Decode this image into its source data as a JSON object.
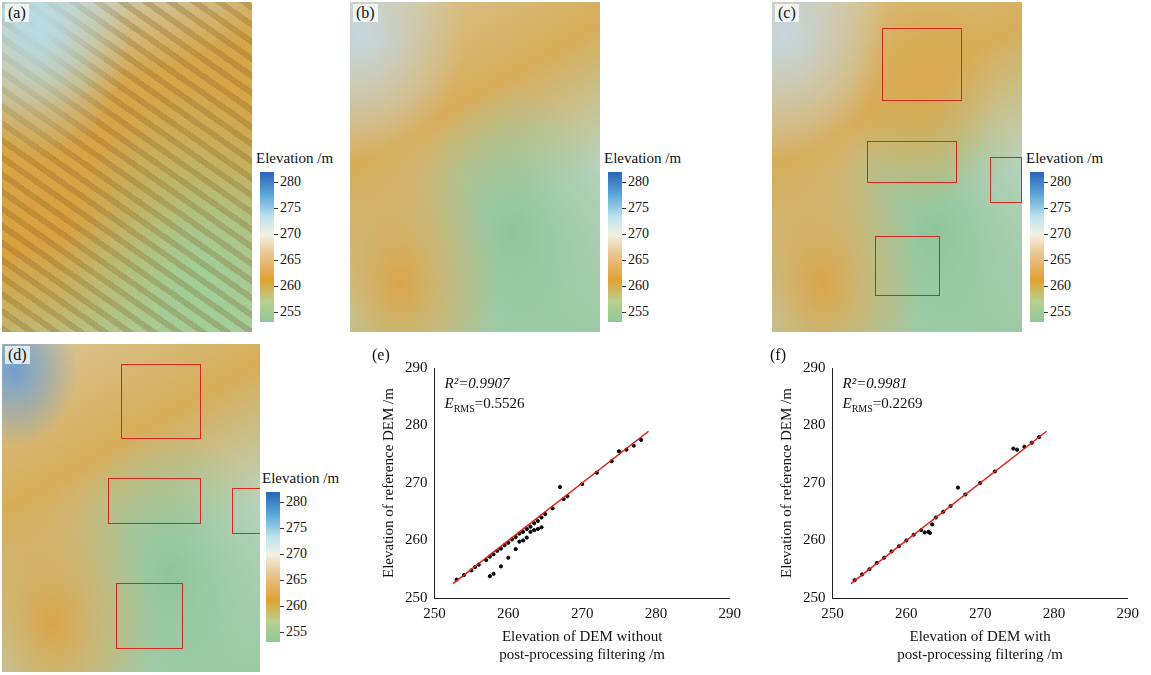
{
  "chart_data": [
    {
      "type": "map",
      "panel": "(a)",
      "colorbar_title": "Elevation /m",
      "colorbar_range": [
        253,
        282
      ],
      "colorbar_ticks": [
        255,
        260,
        265,
        270,
        275,
        280
      ]
    },
    {
      "type": "map",
      "panel": "(b)",
      "colorbar_title": "Elevation /m",
      "colorbar_range": [
        253,
        282
      ],
      "colorbar_ticks": [
        255,
        260,
        265,
        270,
        275,
        280
      ]
    },
    {
      "type": "map",
      "panel": "(c)",
      "colorbar_title": "Elevation /m",
      "colorbar_range": [
        253,
        282
      ],
      "colorbar_ticks": [
        255,
        260,
        265,
        270,
        275,
        280
      ]
    },
    {
      "type": "map",
      "panel": "(d)",
      "colorbar_title": "Elevation /m",
      "colorbar_range": [
        253,
        282
      ],
      "colorbar_ticks": [
        255,
        260,
        265,
        270,
        275,
        280
      ]
    },
    {
      "type": "scatter",
      "panel": "(e)",
      "x_label": [
        "Elevation of DEM without",
        "post-processing filtering /m"
      ],
      "y_label": "Elevation of reference DEM /m",
      "annotations": [
        {
          "text": "R²=0.9907"
        },
        {
          "text": "E",
          "subscript": "RMS",
          "after": "=0.5526"
        }
      ],
      "xlim": [
        250,
        290
      ],
      "xticks": [
        250,
        260,
        270,
        280,
        290
      ],
      "ylim": [
        250,
        290
      ],
      "yticks": [
        250,
        260,
        270,
        280,
        290
      ],
      "grid": false,
      "color": "#000000",
      "marker": "circle",
      "x": [
        253,
        254,
        255,
        255.5,
        256,
        257,
        257.5,
        258,
        258.5,
        259,
        259.5,
        260,
        260.5,
        261,
        261.5,
        262,
        262.5,
        263,
        263.5,
        264,
        264.5,
        265,
        266,
        267,
        267.5,
        268,
        270,
        272,
        274,
        275,
        276,
        277,
        278,
        257.5,
        258,
        259,
        260,
        261,
        262,
        263,
        263.5,
        264,
        262.5,
        261.5,
        264.5
      ],
      "y": [
        253.2,
        254,
        254.8,
        255.4,
        255.8,
        256.6,
        257.2,
        257.6,
        258.2,
        258.6,
        259.2,
        259.6,
        260.2,
        260.6,
        261.2,
        261.5,
        262,
        262.4,
        263,
        263.4,
        264,
        264.6,
        265.6,
        269.3,
        267.2,
        267.7,
        269.8,
        271.8,
        273.8,
        275.5,
        275.8,
        276.5,
        277.5,
        253.8,
        254.2,
        255.5,
        257,
        258.5,
        260,
        261.5,
        261.8,
        262,
        260.5,
        259.8,
        262.3
      ],
      "fit_line": {
        "x": [
          252.5,
          279
        ],
        "y": [
          252.5,
          279
        ],
        "color": "#e0201b",
        "line_style": "solid"
      }
    },
    {
      "type": "scatter",
      "panel": "(f)",
      "x_label": [
        "Elevation of DEM with",
        "post-processing filtering /m"
      ],
      "y_label": "Elevation of reference DEM /m",
      "annotations": [
        {
          "text": "R²=0.9981"
        },
        {
          "text": "E",
          "subscript": "RMS",
          "after": "=0.2269"
        }
      ],
      "xlim": [
        250,
        290
      ],
      "xticks": [
        250,
        260,
        270,
        280,
        290
      ],
      "ylim": [
        250,
        290
      ],
      "yticks": [
        250,
        260,
        270,
        280,
        290
      ],
      "grid": false,
      "color": "#000000",
      "marker": "circle",
      "x": [
        253,
        254,
        255,
        256,
        257,
        258,
        259,
        260,
        261,
        262,
        262.5,
        263,
        263.2,
        263.5,
        264,
        265,
        266,
        267,
        268,
        270,
        272,
        274.5,
        275,
        276,
        277,
        278
      ],
      "y": [
        253.1,
        254.1,
        255,
        256.1,
        257,
        258.1,
        259,
        260,
        261,
        261.8,
        261.4,
        261.5,
        261.3,
        262.8,
        264,
        265,
        266,
        269.2,
        268,
        270,
        272,
        276,
        275.8,
        276.3,
        277,
        278
      ],
      "fit_line": {
        "x": [
          252.5,
          279
        ],
        "y": [
          252.5,
          279
        ],
        "color": "#e0201b",
        "line_style": "solid"
      }
    }
  ]
}
